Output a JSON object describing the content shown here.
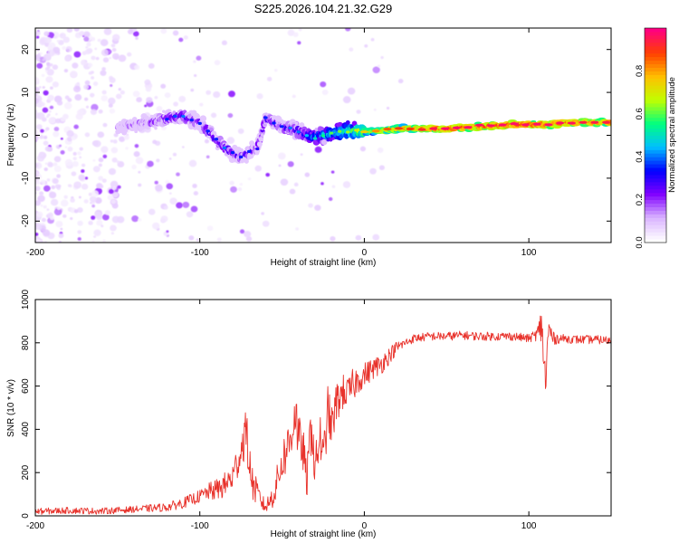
{
  "chart_data": [
    {
      "type": "heatmap",
      "title": "S225.2026.104.21.32.G29",
      "xlabel": "Height of straight line (km)",
      "ylabel": "Frequency (Hz)",
      "xlim": [
        -200,
        150
      ],
      "ylim": [
        -25,
        25
      ],
      "x_ticks": [
        -200,
        -100,
        0,
        100
      ],
      "x_tick_labels": [
        "-200",
        "-100",
        "0",
        "100"
      ],
      "y_ticks": [
        -20,
        -10,
        0,
        10,
        20
      ],
      "y_tick_labels": [
        "-20",
        "-10",
        "0",
        "10",
        "20"
      ],
      "colorbar": {
        "label": "Normalized spectral amplitude",
        "range": [
          0,
          1
        ],
        "ticks": [
          0.0,
          0.2,
          0.4,
          0.6,
          0.8
        ],
        "tick_labels": [
          "0.0",
          "0.2",
          "0.4",
          "0.6",
          "0.8"
        ],
        "colormap": [
          "#ffffff",
          "#d9b3ff",
          "#8000ff",
          "#0000ff",
          "#00c0ff",
          "#00ff80",
          "#c0ff00",
          "#ffc000",
          "#ff4000",
          "#ff0080"
        ]
      },
      "ridge": {
        "description": "frequency ridge center vs height",
        "x": [
          -150,
          -130,
          -120,
          -110,
          -105,
          -100,
          -95,
          -90,
          -85,
          -80,
          -75,
          -70,
          -65,
          -60,
          -55,
          -50,
          -45,
          -40,
          -35,
          -30,
          -25,
          -20,
          -10,
          0,
          10,
          20,
          30,
          40,
          50,
          60,
          70,
          80,
          90,
          100,
          110,
          120,
          130,
          140,
          150
        ],
        "freq_hz": [
          2,
          3,
          4,
          4.5,
          3.5,
          3,
          1,
          -1,
          -3,
          -4,
          -5,
          -4,
          -3,
          4,
          3,
          2,
          1.5,
          1,
          0,
          -0.5,
          0,
          0.5,
          1,
          1,
          1,
          1.5,
          1.5,
          1.5,
          1.5,
          1.8,
          2,
          2.2,
          2.5,
          2.5,
          2.5,
          2.8,
          3,
          3,
          3
        ],
        "peak_amplitude": [
          0.2,
          0.25,
          0.3,
          0.35,
          0.3,
          0.3,
          0.3,
          0.3,
          0.35,
          0.3,
          0.3,
          0.3,
          0.25,
          0.3,
          0.3,
          0.3,
          0.35,
          0.35,
          0.4,
          0.45,
          0.5,
          0.55,
          0.6,
          0.7,
          0.8,
          0.85,
          0.85,
          0.9,
          0.95,
          0.95,
          0.95,
          0.95,
          0.95,
          0.95,
          0.95,
          0.95,
          0.9,
          0.9,
          0.9
        ]
      }
    },
    {
      "type": "line",
      "xlabel": "Height of straight line (km)",
      "ylabel": "SNR (10 * v/v)",
      "xlim": [
        -200,
        150
      ],
      "ylim": [
        0,
        1000
      ],
      "x_ticks": [
        -200,
        -100,
        0,
        100
      ],
      "x_tick_labels": [
        "-200",
        "-100",
        "0",
        "100"
      ],
      "y_ticks": [
        0,
        200,
        400,
        600,
        800,
        1000
      ],
      "y_tick_labels": [
        "0",
        "200",
        "400",
        "600",
        "800",
        "1000"
      ],
      "series": [
        {
          "name": "SNR",
          "color": "#e8322b",
          "x": [
            -200,
            -180,
            -160,
            -140,
            -120,
            -110,
            -100,
            -95,
            -90,
            -85,
            -80,
            -75,
            -72,
            -70,
            -68,
            -65,
            -62,
            -60,
            -55,
            -50,
            -45,
            -42,
            -40,
            -37,
            -35,
            -32,
            -30,
            -27,
            -25,
            -22,
            -20,
            -17,
            -15,
            -12,
            -10,
            -7,
            -5,
            -2,
            0,
            5,
            10,
            15,
            20,
            25,
            30,
            40,
            50,
            60,
            70,
            80,
            90,
            100,
            105,
            108,
            110,
            112,
            115,
            120,
            130,
            140,
            150
          ],
          "y": [
            20,
            25,
            22,
            30,
            40,
            60,
            90,
            110,
            120,
            140,
            180,
            300,
            400,
            250,
            150,
            100,
            60,
            40,
            100,
            250,
            350,
            500,
            350,
            300,
            150,
            450,
            200,
            380,
            250,
            500,
            400,
            520,
            550,
            580,
            560,
            600,
            620,
            640,
            650,
            680,
            700,
            740,
            780,
            800,
            820,
            830,
            830,
            835,
            830,
            830,
            830,
            820,
            840,
            880,
            600,
            860,
            820,
            820,
            815,
            815,
            810
          ],
          "noise_band": [
            15,
            15,
            15,
            15,
            20,
            25,
            30,
            40,
            50,
            60,
            70,
            90,
            120,
            100,
            80,
            60,
            40,
            30,
            60,
            100,
            120,
            150,
            120,
            100,
            80,
            150,
            100,
            120,
            100,
            120,
            100,
            100,
            90,
            80,
            80,
            80,
            70,
            60,
            60,
            50,
            50,
            40,
            30,
            20,
            20,
            20,
            20,
            20,
            20,
            20,
            20,
            20,
            30,
            100,
            120,
            80,
            30,
            20,
            20,
            20,
            20
          ]
        }
      ]
    }
  ]
}
